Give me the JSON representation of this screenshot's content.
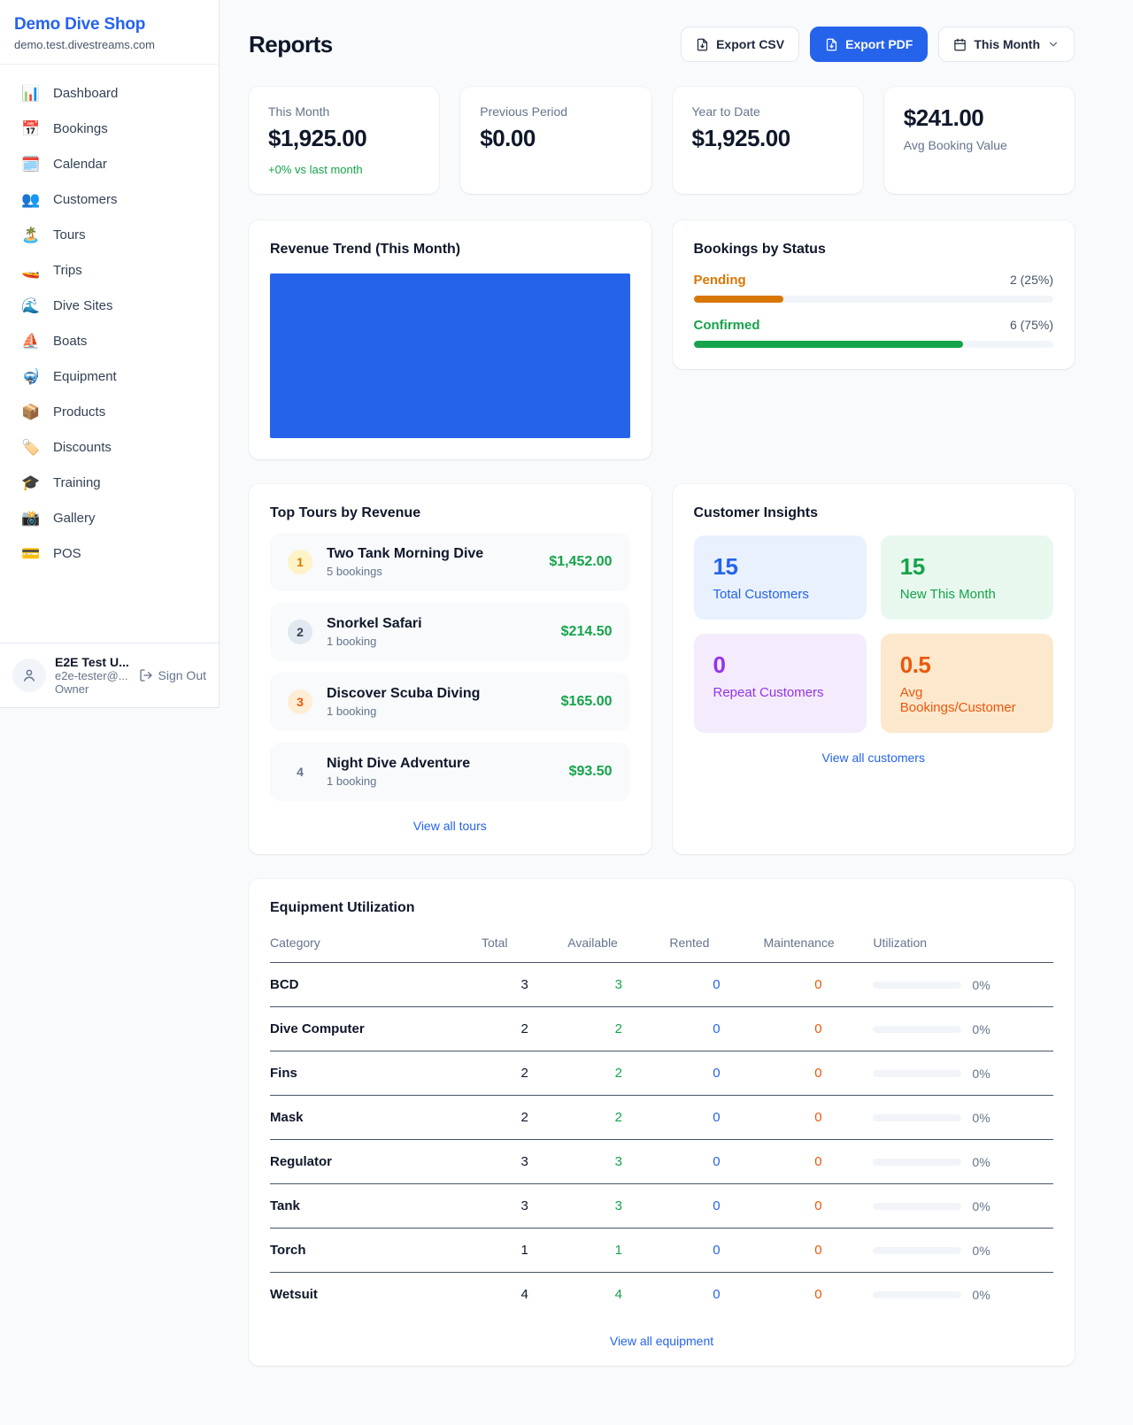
{
  "sidebar": {
    "shop_name": "Demo Dive Shop",
    "shop_domain": "demo.test.divestreams.com",
    "items": [
      {
        "icon": "📊",
        "label": "Dashboard"
      },
      {
        "icon": "📅",
        "label": "Bookings"
      },
      {
        "icon": "🗓️",
        "label": "Calendar"
      },
      {
        "icon": "👥",
        "label": "Customers"
      },
      {
        "icon": "🏝️",
        "label": "Tours"
      },
      {
        "icon": "🚤",
        "label": "Trips"
      },
      {
        "icon": "🌊",
        "label": "Dive Sites"
      },
      {
        "icon": "⛵",
        "label": "Boats"
      },
      {
        "icon": "🤿",
        "label": "Equipment"
      },
      {
        "icon": "📦",
        "label": "Products"
      },
      {
        "icon": "🏷️",
        "label": "Discounts"
      },
      {
        "icon": "🎓",
        "label": "Training"
      },
      {
        "icon": "📸",
        "label": "Gallery"
      },
      {
        "icon": "💳",
        "label": "POS"
      }
    ],
    "user": {
      "name": "E2E Test U...",
      "email": "e2e-tester@...",
      "role": "Owner",
      "sign_out_label": "Sign Out"
    }
  },
  "header": {
    "title": "Reports",
    "export_csv_label": "Export CSV",
    "export_pdf_label": "Export PDF",
    "period_label": "This Month"
  },
  "stats": [
    {
      "label": "This Month",
      "value": "$1,925.00",
      "delta": "+0% vs last month"
    },
    {
      "label": "Previous Period",
      "value": "$0.00"
    },
    {
      "label": "Year to Date",
      "value": "$1,925.00"
    },
    {
      "label": "Avg Booking Value",
      "value": "$241.00"
    }
  ],
  "revenue_trend": {
    "title": "Revenue Trend (This Month)",
    "bar_color": "#2563eb"
  },
  "bookings_by_status": {
    "title": "Bookings by Status",
    "rows": [
      {
        "label": "Pending",
        "count_text": "2 (25%)",
        "percent": 25,
        "color": "#d97706"
      },
      {
        "label": "Confirmed",
        "count_text": "6 (75%)",
        "percent": 75,
        "color": "#16a34a"
      }
    ]
  },
  "top_tours": {
    "title": "Top Tours by Revenue",
    "view_all_label": "View all tours",
    "items": [
      {
        "rank": "1",
        "name": "Two Tank Morning Dive",
        "bookings": "5 bookings",
        "revenue": "$1,452.00"
      },
      {
        "rank": "2",
        "name": "Snorkel Safari",
        "bookings": "1 booking",
        "revenue": "$214.50"
      },
      {
        "rank": "3",
        "name": "Discover Scuba Diving",
        "bookings": "1 booking",
        "revenue": "$165.00"
      },
      {
        "rank": "4",
        "name": "Night Dive Adventure",
        "bookings": "1 booking",
        "revenue": "$93.50"
      }
    ]
  },
  "customer_insights": {
    "title": "Customer Insights",
    "view_all_label": "View all customers",
    "tiles": [
      {
        "value": "15",
        "label": "Total Customers",
        "color": "#2563eb"
      },
      {
        "value": "15",
        "label": "New This Month",
        "color": "#16a34a"
      },
      {
        "value": "0",
        "label": "Repeat Customers",
        "color": "#9333ea"
      },
      {
        "value": "0.5",
        "label": "Avg Bookings/Customer",
        "color": "#ea580c"
      }
    ]
  },
  "equipment": {
    "title": "Equipment Utilization",
    "view_all_label": "View all equipment",
    "columns": [
      "Category",
      "Total",
      "Available",
      "Rented",
      "Maintenance",
      "Utilization"
    ],
    "rows": [
      {
        "category": "BCD",
        "total": "3",
        "available": "3",
        "rented": "0",
        "maintenance": "0",
        "utilization": "0%",
        "utilization_percent": 0
      },
      {
        "category": "Dive Computer",
        "total": "2",
        "available": "2",
        "rented": "0",
        "maintenance": "0",
        "utilization": "0%",
        "utilization_percent": 0
      },
      {
        "category": "Fins",
        "total": "2",
        "available": "2",
        "rented": "0",
        "maintenance": "0",
        "utilization": "0%",
        "utilization_percent": 0
      },
      {
        "category": "Mask",
        "total": "2",
        "available": "2",
        "rented": "0",
        "maintenance": "0",
        "utilization": "0%",
        "utilization_percent": 0
      },
      {
        "category": "Regulator",
        "total": "3",
        "available": "3",
        "rented": "0",
        "maintenance": "0",
        "utilization": "0%",
        "utilization_percent": 0
      },
      {
        "category": "Tank",
        "total": "3",
        "available": "3",
        "rented": "0",
        "maintenance": "0",
        "utilization": "0%",
        "utilization_percent": 0
      },
      {
        "category": "Torch",
        "total": "1",
        "available": "1",
        "rented": "0",
        "maintenance": "0",
        "utilization": "0%",
        "utilization_percent": 0
      },
      {
        "category": "Wetsuit",
        "total": "4",
        "available": "4",
        "rented": "0",
        "maintenance": "0",
        "utilization": "0%",
        "utilization_percent": 0
      }
    ]
  },
  "colors": {
    "accent_blue": "#2563eb",
    "success_green": "#16a34a",
    "pending_orange": "#d97706",
    "maintenance_orange": "#ea580c",
    "page_bg": "#f8fafc"
  }
}
